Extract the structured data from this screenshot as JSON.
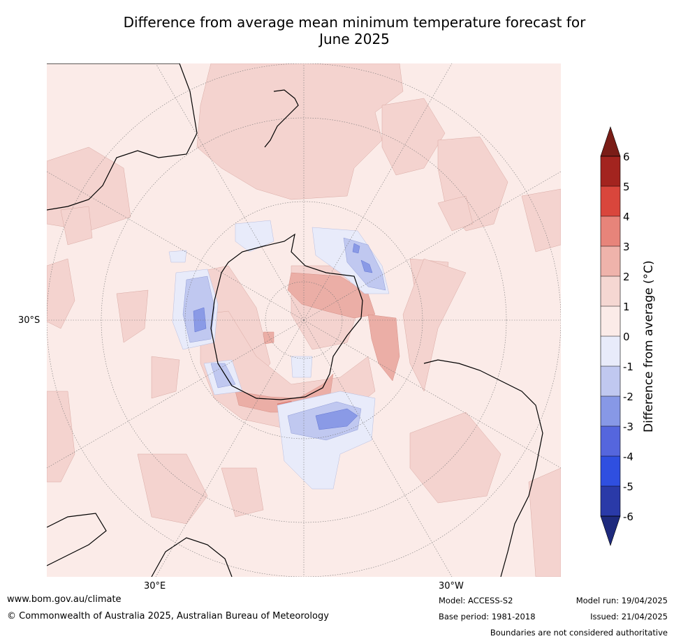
{
  "title_line1": "Difference from average mean minimum temperature forecast for",
  "title_line2": "June 2025",
  "map": {
    "lat_label": "30°S",
    "lon_labels": {
      "left": "30°E",
      "right": "30°W"
    },
    "colors": {
      "background_anomaly": "#fbebe8",
      "warm_0_1": "#fbebe8",
      "warm_1_2": "#f4d3cf",
      "warm_2_3": "#ebaea6",
      "warm_3_4": "#e5877e",
      "cool_0_1": "#e8ebfa",
      "cool_1_2": "#c0c8f0",
      "cool_2_3": "#8a9ae6"
    }
  },
  "colorbar": {
    "label": "Difference from average (°C)",
    "ticks": [
      "6",
      "5",
      "4",
      "3",
      "2",
      "1",
      "0",
      "-1",
      "-2",
      "-3",
      "-4",
      "-5",
      "-6"
    ],
    "colors": [
      "#a3241f",
      "#d9463c",
      "#e7847a",
      "#efb3ab",
      "#f5d7d2",
      "#fbebe8",
      "#e8ebfa",
      "#c0c8f0",
      "#8798e6",
      "#5566dd",
      "#2f4fe0",
      "#2a3aa8"
    ],
    "over_color": "#7a1d17",
    "under_color": "#1e2a7d"
  },
  "footer": {
    "website": "www.bom.gov.au/climate",
    "copyright": "© Commonwealth of Australia 2025, Australian Bureau of Meteorology",
    "model": "Model: ACCESS-S2",
    "base_period": "Base period: 1981-2018",
    "model_run": "Model run: 19/04/2025",
    "issued": "Issued: 21/04/2025",
    "disclaimer": "Boundaries are not considered authoritative"
  }
}
